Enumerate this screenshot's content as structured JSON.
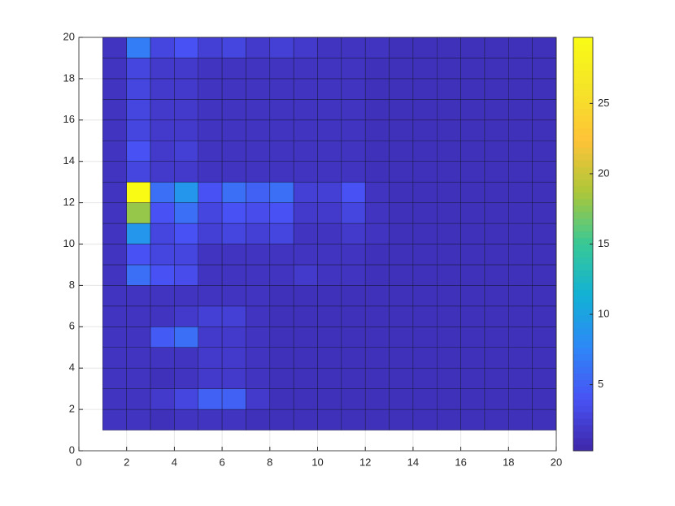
{
  "chart_data": {
    "type": "heatmap",
    "x": [
      1,
      2,
      3,
      4,
      5,
      6,
      7,
      8,
      9,
      10,
      11,
      12,
      13,
      14,
      15,
      16,
      17,
      18,
      19
    ],
    "y": [
      1,
      2,
      3,
      4,
      5,
      6,
      7,
      8,
      9,
      10,
      11,
      12,
      13,
      14,
      15,
      16,
      17,
      18,
      19
    ],
    "z": [
      [
        1.5,
        1.5,
        1.2,
        1.5,
        1.5,
        1.5,
        1.2,
        1.2,
        1.2,
        1.2,
        1.2,
        1.2,
        1.2,
        1.2,
        1.2,
        1.2,
        1.2,
        1.2,
        1.2
      ],
      [
        1.5,
        1.5,
        2,
        3,
        5,
        5,
        2,
        1.2,
        1.2,
        1.2,
        1.2,
        1.2,
        1.2,
        1.2,
        1.2,
        1.2,
        1.2,
        1.2,
        1.2
      ],
      [
        1.5,
        1.5,
        1.2,
        1.5,
        2,
        2,
        1.5,
        1.2,
        1.2,
        1.2,
        1.2,
        1.2,
        1.2,
        1.2,
        1.2,
        1.2,
        1.2,
        1.2,
        1.2
      ],
      [
        1.5,
        1.5,
        1.5,
        1.5,
        2,
        2,
        1.5,
        1.2,
        1.2,
        1.2,
        1.2,
        1.2,
        1.2,
        1.2,
        1.2,
        1.2,
        1.2,
        1.2,
        1.2
      ],
      [
        1.5,
        1.5,
        4.5,
        6,
        2,
        2,
        1.5,
        1.2,
        1.2,
        1.2,
        1.2,
        1.2,
        1.2,
        1.2,
        1.2,
        1.2,
        1.2,
        1.2,
        1.2
      ],
      [
        1.5,
        1.5,
        1.5,
        2,
        2.5,
        2.5,
        1.5,
        1.2,
        1.2,
        1.2,
        1.2,
        1.2,
        1.2,
        1.2,
        1.2,
        1.2,
        1.2,
        1.2,
        1.2
      ],
      [
        1.5,
        1.5,
        1.5,
        1.5,
        1.5,
        1.5,
        1.5,
        1.2,
        1.2,
        1.2,
        1.2,
        1.2,
        1.2,
        1.2,
        1.2,
        1.2,
        1.2,
        1.2,
        1.2
      ],
      [
        1.5,
        6,
        4,
        3.5,
        1.5,
        1.5,
        1.5,
        1.5,
        2,
        1.5,
        1.5,
        1.2,
        1.2,
        1.2,
        1.2,
        1.2,
        1.2,
        1.2,
        1.2
      ],
      [
        1.5,
        4,
        3,
        3,
        1.5,
        1.5,
        1.5,
        1.5,
        1.5,
        1.5,
        1.5,
        1.2,
        1.2,
        1.2,
        1.2,
        1.2,
        1.2,
        1.2,
        1.2
      ],
      [
        1.5,
        9,
        3,
        4,
        2.5,
        3,
        2.5,
        3,
        1.5,
        1.5,
        2,
        1.5,
        1.2,
        1.2,
        1.2,
        1.2,
        1.2,
        1.2,
        1.2
      ],
      [
        1.5,
        18,
        4,
        6,
        3,
        4,
        3.5,
        4,
        2,
        2,
        3,
        1.5,
        1.2,
        1.2,
        1.2,
        1.2,
        1.2,
        1.2,
        1.2
      ],
      [
        1.5,
        29.7,
        6,
        9,
        4,
        6,
        5,
        6,
        2.5,
        2.5,
        4,
        1.5,
        1.2,
        1.2,
        1.2,
        1.2,
        1.2,
        1.2,
        1.2
      ],
      [
        1.5,
        3,
        2,
        2,
        1.5,
        1.5,
        1.5,
        1.5,
        1.5,
        1.5,
        1.5,
        1.2,
        1.2,
        1.2,
        1.2,
        1.2,
        1.2,
        1.2,
        1.2
      ],
      [
        1.5,
        4,
        2,
        2.5,
        1.5,
        1.5,
        1.5,
        1.5,
        1.5,
        1.5,
        1.5,
        1.2,
        1.2,
        1.2,
        1.2,
        1.2,
        1.2,
        1.2,
        1.2
      ],
      [
        1.5,
        3,
        2,
        2,
        1.5,
        1.5,
        1.5,
        1.5,
        1.5,
        1.5,
        1.5,
        1.2,
        1.2,
        1.2,
        1.2,
        1.2,
        1.2,
        1.2,
        1.2
      ],
      [
        1.5,
        3,
        2,
        2,
        1.5,
        1.5,
        1.5,
        1.5,
        1.5,
        1.5,
        1.5,
        1.2,
        1.2,
        1.2,
        1.2,
        1.2,
        1.2,
        1.2,
        1.2
      ],
      [
        1.5,
        3,
        2,
        2,
        1.5,
        1.5,
        1.5,
        1.5,
        1.5,
        1.5,
        1.5,
        1.2,
        1.2,
        1.2,
        1.2,
        1.2,
        1.2,
        1.2,
        1.2
      ],
      [
        1.5,
        3,
        2,
        2,
        1.5,
        1.5,
        1.5,
        1.5,
        1.5,
        1.5,
        1.5,
        1.2,
        1.2,
        1.2,
        1.2,
        1.2,
        1.2,
        1.2,
        1.2
      ],
      [
        1.5,
        7,
        3,
        4,
        2.5,
        3,
        2,
        2.5,
        2,
        1.5,
        1.5,
        1.5,
        1.2,
        1.2,
        1.2,
        1.2,
        1.2,
        1.2,
        1.2
      ]
    ],
    "colormap": "parula",
    "xlim": [
      0,
      20
    ],
    "xticks": [
      0,
      2,
      4,
      6,
      8,
      10,
      12,
      14,
      16,
      18,
      20
    ],
    "ylim": [
      0,
      20
    ],
    "yticks": [
      0,
      2,
      4,
      6,
      8,
      10,
      12,
      14,
      16,
      18,
      20
    ],
    "clim": [
      0.3,
      29.7
    ],
    "cticks": [
      5,
      10,
      15,
      20,
      25
    ],
    "grid": true
  }
}
